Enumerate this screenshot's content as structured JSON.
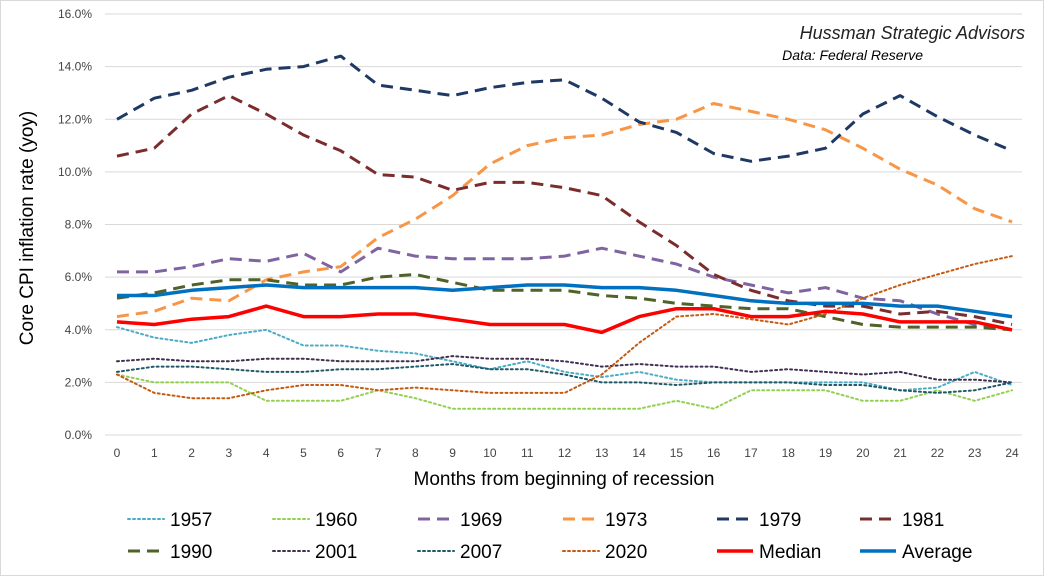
{
  "chart_data": {
    "type": "line",
    "title": "",
    "xlabel": "Months from beginning of recession",
    "ylabel": "Core CPI inflation rate (yoy)",
    "x": [
      0,
      1,
      2,
      3,
      4,
      5,
      6,
      7,
      8,
      9,
      10,
      11,
      12,
      13,
      14,
      15,
      16,
      17,
      18,
      19,
      20,
      21,
      22,
      23,
      24
    ],
    "xlim": [
      0,
      24
    ],
    "ylim": [
      0,
      16
    ],
    "y_ticks": [
      "0.0%",
      "2.0%",
      "4.0%",
      "6.0%",
      "8.0%",
      "10.0%",
      "12.0%",
      "14.0%",
      "16.0%"
    ],
    "grid": true,
    "legend_position": "bottom",
    "annotations": [
      "Hussman Strategic Advisors",
      "Data: Federal Reserve"
    ],
    "series": [
      {
        "name": "1957",
        "color": "#4bacc6",
        "style": "dotted",
        "width": 2,
        "values": [
          4.1,
          3.7,
          3.5,
          3.8,
          4.0,
          3.4,
          3.4,
          3.2,
          3.1,
          2.8,
          2.5,
          2.8,
          2.4,
          2.2,
          2.4,
          2.1,
          2.0,
          2.0,
          2.0,
          2.0,
          2.0,
          1.7,
          1.8,
          2.4,
          1.9
        ]
      },
      {
        "name": "1960",
        "color": "#92d050",
        "style": "dotted",
        "width": 2,
        "values": [
          2.3,
          2.0,
          2.0,
          2.0,
          1.3,
          1.3,
          1.3,
          1.7,
          1.4,
          1.0,
          1.0,
          1.0,
          1.0,
          1.0,
          1.0,
          1.3,
          1.0,
          1.7,
          1.7,
          1.7,
          1.3,
          1.3,
          1.7,
          1.3,
          1.7
        ]
      },
      {
        "name": "1969",
        "color": "#8064a2",
        "style": "dashed",
        "width": 3,
        "values": [
          6.2,
          6.2,
          6.4,
          6.7,
          6.6,
          6.9,
          6.2,
          7.1,
          6.8,
          6.7,
          6.7,
          6.7,
          6.8,
          7.1,
          6.8,
          6.5,
          6.0,
          5.7,
          5.4,
          5.6,
          5.2,
          5.1,
          4.6,
          4.2,
          4.0
        ]
      },
      {
        "name": "1973",
        "color": "#f79646",
        "style": "dashed",
        "width": 3,
        "values": [
          4.5,
          4.7,
          5.2,
          5.1,
          5.9,
          6.2,
          6.4,
          7.5,
          8.2,
          9.1,
          10.3,
          11.0,
          11.3,
          11.4,
          11.8,
          12.0,
          12.6,
          12.3,
          12.0,
          11.6,
          10.9,
          10.1,
          9.5,
          8.6,
          8.1
        ]
      },
      {
        "name": "1979",
        "color": "#1f3864",
        "style": "dashed",
        "width": 3,
        "values": [
          12.0,
          12.8,
          13.1,
          13.6,
          13.9,
          14.0,
          14.4,
          13.3,
          13.1,
          12.9,
          13.2,
          13.4,
          13.5,
          12.8,
          11.9,
          11.5,
          10.7,
          10.4,
          10.6,
          10.9,
          12.2,
          12.9,
          12.1,
          11.4,
          10.8
        ]
      },
      {
        "name": "1981",
        "color": "#7b2c2c",
        "style": "dashed",
        "width": 3,
        "values": [
          10.6,
          10.9,
          12.2,
          12.9,
          12.2,
          11.4,
          10.8,
          9.9,
          9.8,
          9.3,
          9.6,
          9.6,
          9.4,
          9.1,
          8.1,
          7.2,
          6.1,
          5.5,
          5.1,
          4.9,
          4.9,
          4.6,
          4.7,
          4.5,
          4.2
        ]
      },
      {
        "name": "1990",
        "color": "#4f6228",
        "style": "dashed",
        "width": 3,
        "values": [
          5.2,
          5.4,
          5.7,
          5.9,
          5.9,
          5.7,
          5.7,
          6.0,
          6.1,
          5.8,
          5.5,
          5.5,
          5.5,
          5.3,
          5.2,
          5.0,
          4.9,
          4.8,
          4.8,
          4.5,
          4.2,
          4.1,
          4.1,
          4.1,
          4.0
        ]
      },
      {
        "name": "2001",
        "color": "#403152",
        "style": "dotted",
        "width": 2,
        "values": [
          2.8,
          2.9,
          2.8,
          2.8,
          2.9,
          2.9,
          2.8,
          2.8,
          2.8,
          3.0,
          2.9,
          2.9,
          2.8,
          2.6,
          2.7,
          2.6,
          2.6,
          2.4,
          2.5,
          2.4,
          2.3,
          2.4,
          2.1,
          2.1,
          2.0
        ]
      },
      {
        "name": "2007",
        "color": "#215968",
        "style": "dotted",
        "width": 2,
        "values": [
          2.4,
          2.6,
          2.6,
          2.5,
          2.4,
          2.4,
          2.5,
          2.5,
          2.6,
          2.7,
          2.5,
          2.5,
          2.3,
          2.0,
          2.0,
          1.9,
          2.0,
          2.0,
          2.0,
          1.9,
          1.9,
          1.7,
          1.6,
          1.7,
          2.0
        ]
      },
      {
        "name": "2020",
        "color": "#c55a11",
        "style": "dotted",
        "width": 2,
        "values": [
          2.3,
          1.6,
          1.4,
          1.4,
          1.7,
          1.9,
          1.9,
          1.7,
          1.8,
          1.7,
          1.6,
          1.6,
          1.6,
          2.3,
          3.5,
          4.5,
          4.6,
          4.4,
          4.2,
          4.6,
          5.2,
          5.7,
          6.1,
          6.5,
          6.8
        ]
      },
      {
        "name": "Median",
        "color": "#ff0000",
        "style": "solid",
        "width": 3.5,
        "values": [
          4.3,
          4.2,
          4.4,
          4.5,
          4.9,
          4.5,
          4.5,
          4.6,
          4.6,
          4.4,
          4.2,
          4.2,
          4.2,
          3.9,
          4.5,
          4.8,
          4.8,
          4.5,
          4.5,
          4.7,
          4.6,
          4.3,
          4.3,
          4.3,
          4.0
        ]
      },
      {
        "name": "Average",
        "color": "#0070c0",
        "style": "solid",
        "width": 3.5,
        "values": [
          5.3,
          5.3,
          5.5,
          5.6,
          5.7,
          5.6,
          5.6,
          5.6,
          5.6,
          5.5,
          5.6,
          5.7,
          5.7,
          5.6,
          5.6,
          5.5,
          5.3,
          5.1,
          5.0,
          5.0,
          5.0,
          4.9,
          4.9,
          4.7,
          4.5
        ]
      }
    ]
  }
}
